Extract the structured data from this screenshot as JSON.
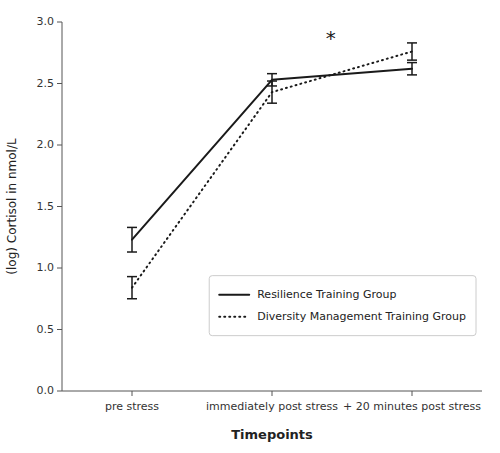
{
  "chart_data": {
    "type": "line",
    "categories": [
      "pre stress",
      "immediately post stress",
      "+ 20 minutes post stress"
    ],
    "series": [
      {
        "name": "Resilience Training Group",
        "values": [
          1.23,
          2.53,
          2.62
        ],
        "errors": [
          0.1,
          0.05,
          0.05
        ],
        "color": "#1a1a1a",
        "line_style": "solid"
      },
      {
        "name": "Diversity Management Training Group",
        "values": [
          0.84,
          2.43,
          2.76
        ],
        "errors": [
          0.09,
          0.09,
          0.07
        ],
        "color": "#1a1a1a",
        "line_style": "dotted"
      }
    ],
    "xlabel": "Timepoints",
    "ylabel": "(log) Cortisol in nmol/L",
    "ylim": [
      0.0,
      3.0
    ],
    "yticks": [
      {
        "value": 0.0,
        "label": "0.0"
      },
      0.5,
      {
        "value": 1.0,
        "label": "1.0"
      },
      1.5,
      {
        "value": 2.0,
        "label": "2.0"
      },
      2.5,
      {
        "value": 3.0,
        "label": "3.0"
      }
    ],
    "annotations": [
      {
        "text": "*",
        "x": 1.42,
        "y": 2.87
      }
    ],
    "legend": "lower right",
    "grid": false
  }
}
